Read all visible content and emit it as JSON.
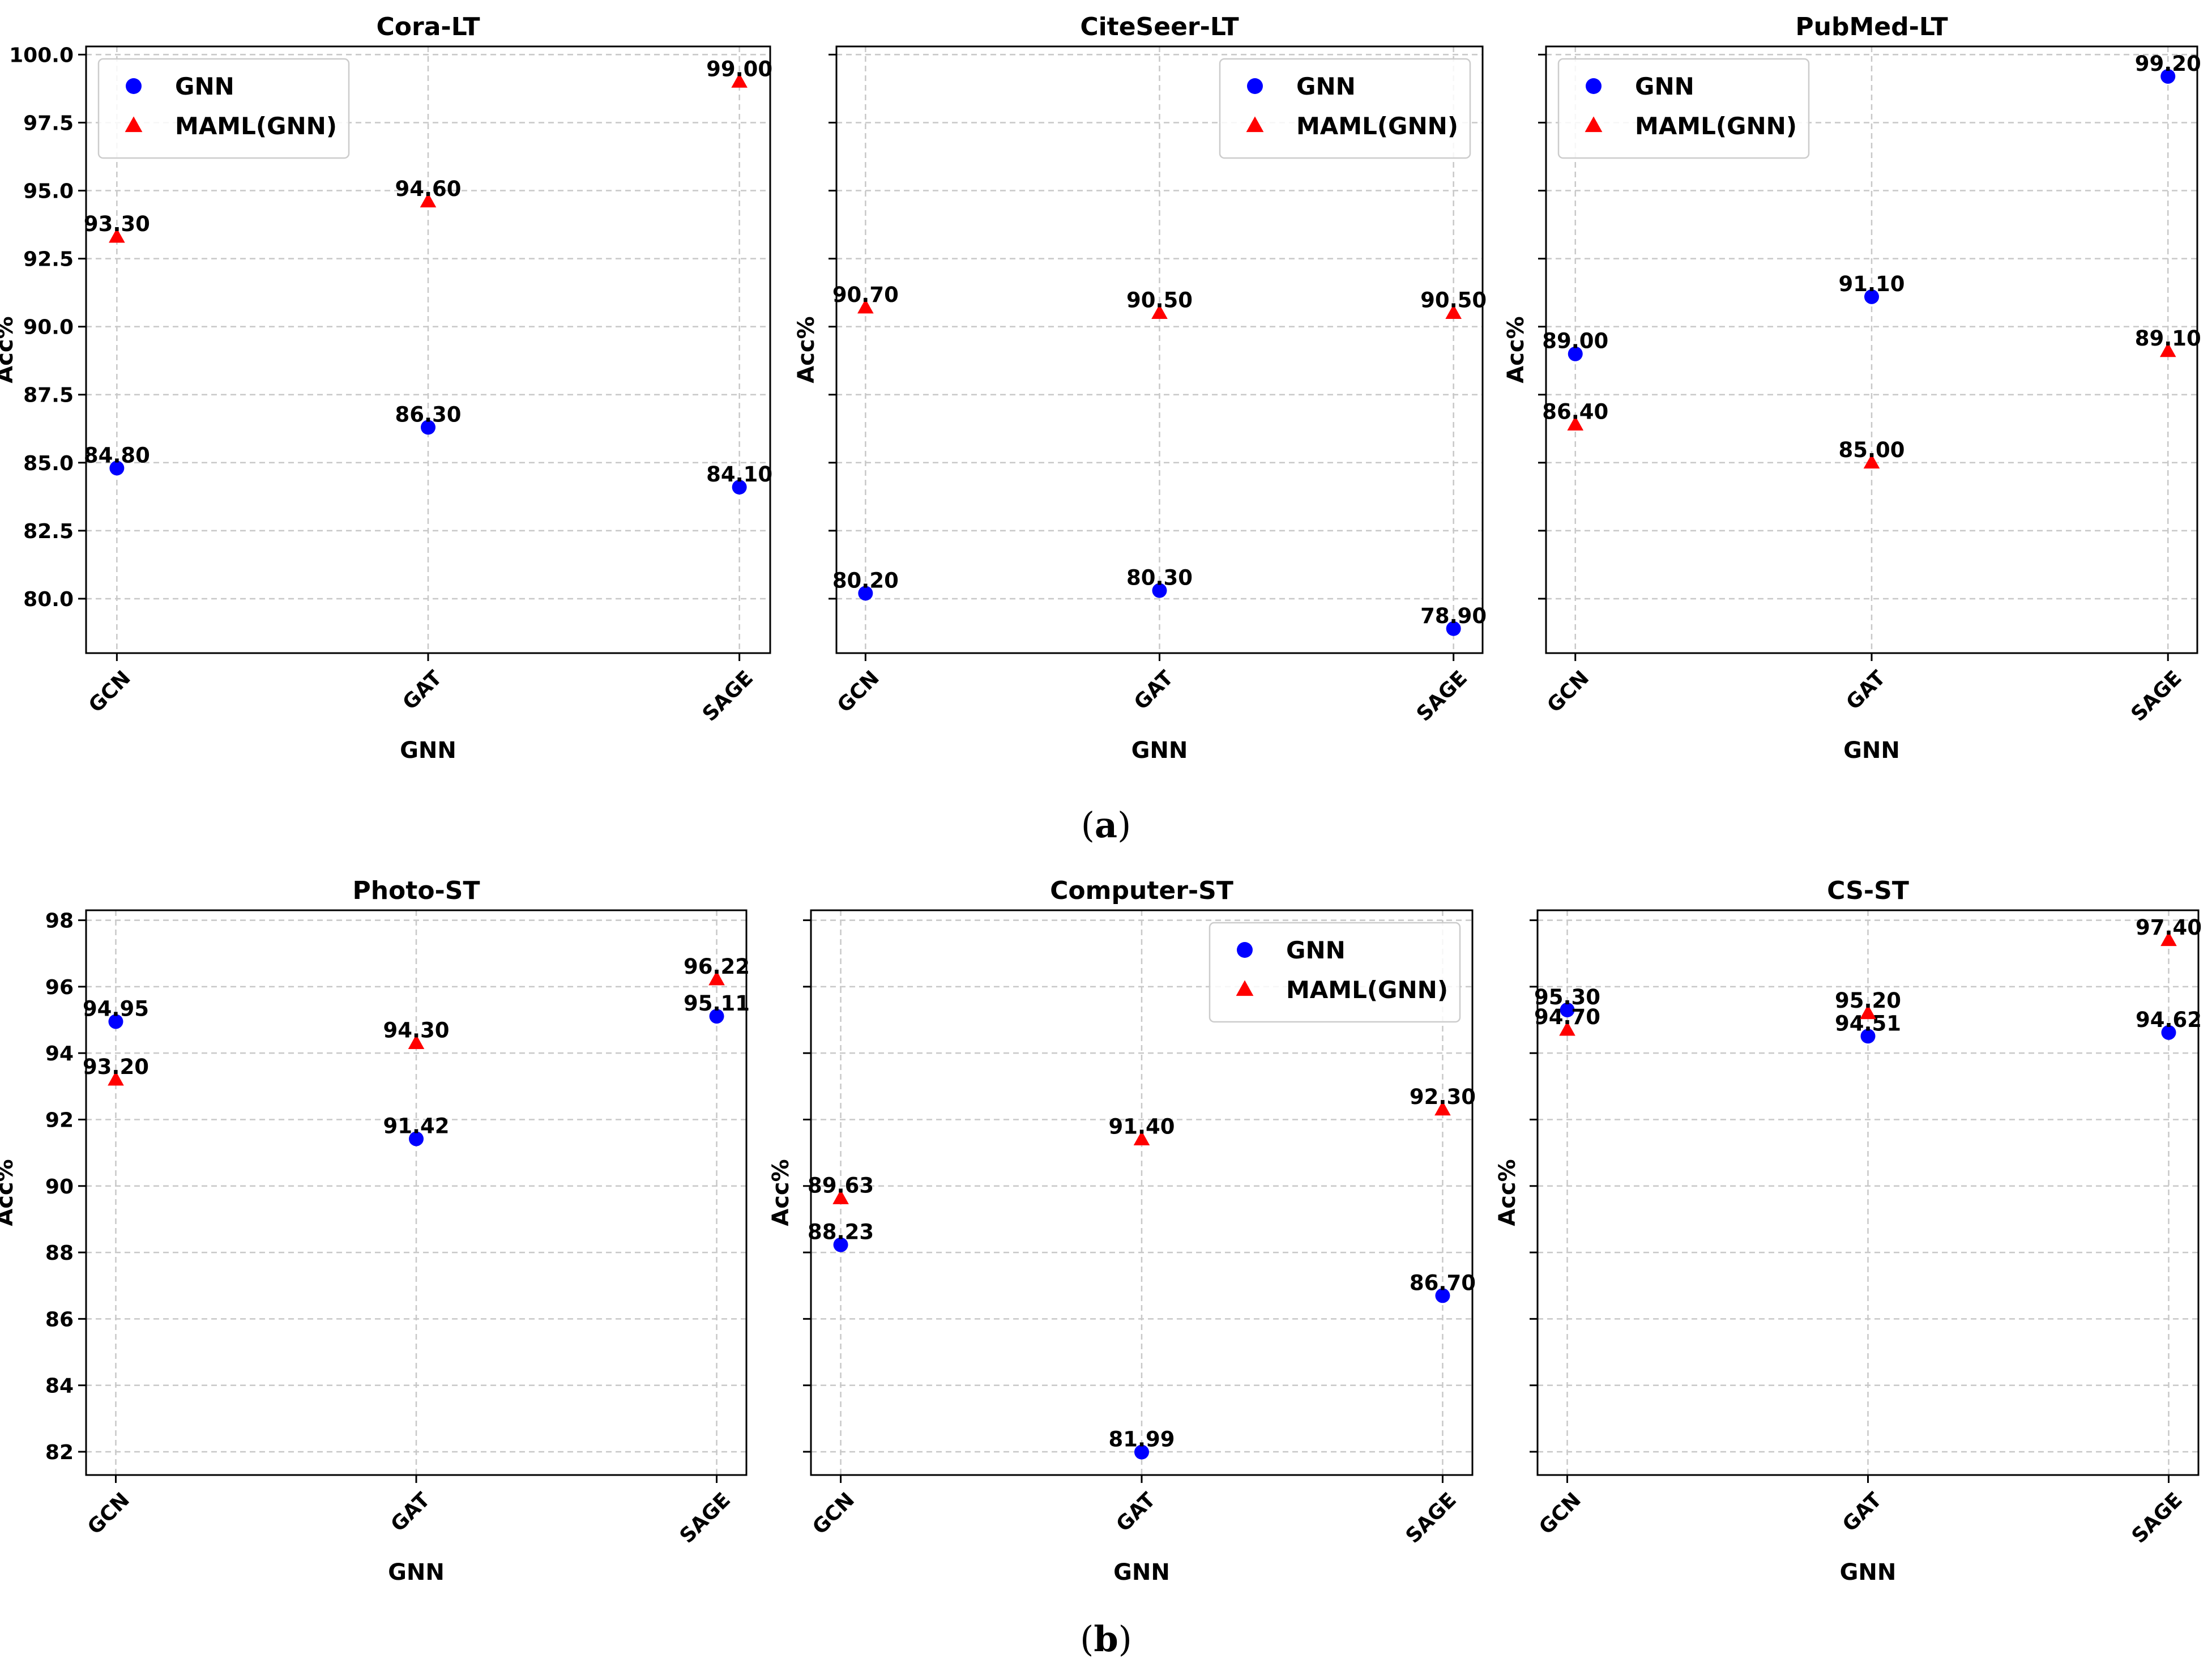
{
  "figure": {
    "captions": [
      {
        "open": "(",
        "letter": "a",
        "close": ")"
      },
      {
        "open": "(",
        "letter": "b",
        "close": ")"
      }
    ],
    "colors": {
      "gnn": "#0000ff",
      "maml": "#ff0000",
      "grid": "#c8c8c8",
      "axis": "#000000"
    }
  },
  "chart_data": [
    {
      "type": "scatter",
      "title": "Cora-LT",
      "xlabel": "GNN",
      "ylabel": "Acc%",
      "categories": [
        "GCN",
        "GAT",
        "SAGE"
      ],
      "ylim": [
        78.0,
        100.3
      ],
      "yticks": [
        80.0,
        82.5,
        85.0,
        87.5,
        90.0,
        92.5,
        95.0,
        97.5,
        100.0
      ],
      "ytick_labels": [
        "80.0",
        "82.5",
        "85.0",
        "87.5",
        "90.0",
        "92.5",
        "95.0",
        "97.5",
        "100.0"
      ],
      "show_ytick_labels": true,
      "legend": "top-left",
      "grid": true,
      "series": [
        {
          "name": "GNN",
          "marker": "circle",
          "values": [
            84.8,
            86.3,
            84.1
          ],
          "labels": [
            "84.80",
            "86.30",
            "84.10"
          ]
        },
        {
          "name": "MAML(GNN)",
          "marker": "triangle",
          "values": [
            93.3,
            94.6,
            99.0
          ],
          "labels": [
            "93.30",
            "94.60",
            "99.00"
          ]
        }
      ]
    },
    {
      "type": "scatter",
      "title": "CiteSeer-LT",
      "xlabel": "GNN",
      "ylabel": "Acc%",
      "categories": [
        "GCN",
        "GAT",
        "SAGE"
      ],
      "ylim": [
        78.0,
        100.3
      ],
      "yticks": [
        80.0,
        82.5,
        85.0,
        87.5,
        90.0,
        92.5,
        95.0,
        97.5,
        100.0
      ],
      "ytick_labels": [],
      "show_ytick_labels": false,
      "legend": "top-right",
      "grid": true,
      "series": [
        {
          "name": "GNN",
          "marker": "circle",
          "values": [
            80.2,
            80.3,
            78.9
          ],
          "labels": [
            "80.20",
            "80.30",
            "78.90"
          ]
        },
        {
          "name": "MAML(GNN)",
          "marker": "triangle",
          "values": [
            90.7,
            90.5,
            90.5
          ],
          "labels": [
            "90.70",
            "90.50",
            "90.50"
          ]
        }
      ]
    },
    {
      "type": "scatter",
      "title": "PubMed-LT",
      "xlabel": "GNN",
      "ylabel": "Acc%",
      "categories": [
        "GCN",
        "GAT",
        "SAGE"
      ],
      "ylim": [
        78.0,
        100.3
      ],
      "yticks": [
        80.0,
        82.5,
        85.0,
        87.5,
        90.0,
        92.5,
        95.0,
        97.5,
        100.0
      ],
      "ytick_labels": [],
      "show_ytick_labels": false,
      "legend": "top-left",
      "grid": true,
      "series": [
        {
          "name": "GNN",
          "marker": "circle",
          "values": [
            89.0,
            91.1,
            99.2
          ],
          "labels": [
            "89.00",
            "91.10",
            "99.20"
          ]
        },
        {
          "name": "MAML(GNN)",
          "marker": "triangle",
          "values": [
            86.4,
            85.0,
            89.1
          ],
          "labels": [
            "86.40",
            "85.00",
            "89.10"
          ]
        }
      ]
    },
    {
      "type": "scatter",
      "title": "Photo-ST",
      "xlabel": "GNN",
      "ylabel": "Acc%",
      "categories": [
        "GCN",
        "GAT",
        "SAGE"
      ],
      "ylim": [
        81.3,
        98.3
      ],
      "yticks": [
        82,
        84,
        86,
        88,
        90,
        92,
        94,
        96,
        98
      ],
      "ytick_labels": [
        "82",
        "84",
        "86",
        "88",
        "90",
        "92",
        "94",
        "96",
        "98"
      ],
      "show_ytick_labels": true,
      "legend": "none",
      "grid": true,
      "series": [
        {
          "name": "GNN",
          "marker": "circle",
          "values": [
            94.95,
            91.42,
            95.11
          ],
          "labels": [
            "94.95",
            "91.42",
            "95.11"
          ]
        },
        {
          "name": "MAML(GNN)",
          "marker": "triangle",
          "values": [
            93.2,
            94.3,
            96.22
          ],
          "labels": [
            "93.20",
            "94.30",
            "96.22"
          ]
        }
      ]
    },
    {
      "type": "scatter",
      "title": "Computer-ST",
      "xlabel": "GNN",
      "ylabel": "Acc%",
      "categories": [
        "GCN",
        "GAT",
        "SAGE"
      ],
      "ylim": [
        81.3,
        98.3
      ],
      "yticks": [
        82,
        84,
        86,
        88,
        90,
        92,
        94,
        96,
        98
      ],
      "ytick_labels": [],
      "show_ytick_labels": false,
      "legend": "top-right",
      "grid": true,
      "series": [
        {
          "name": "GNN",
          "marker": "circle",
          "values": [
            88.23,
            81.99,
            86.7
          ],
          "labels": [
            "88.23",
            "81.99",
            "86.70"
          ]
        },
        {
          "name": "MAML(GNN)",
          "marker": "triangle",
          "values": [
            89.63,
            91.4,
            92.3
          ],
          "labels": [
            "89.63",
            "91.40",
            "92.30"
          ]
        }
      ]
    },
    {
      "type": "scatter",
      "title": "CS-ST",
      "xlabel": "GNN",
      "ylabel": "Acc%",
      "categories": [
        "GCN",
        "GAT",
        "SAGE"
      ],
      "ylim": [
        81.3,
        98.3
      ],
      "yticks": [
        82,
        84,
        86,
        88,
        90,
        92,
        94,
        96,
        98
      ],
      "ytick_labels": [],
      "show_ytick_labels": false,
      "legend": "none",
      "grid": true,
      "series": [
        {
          "name": "GNN",
          "marker": "circle",
          "values": [
            95.3,
            94.51,
            94.62
          ],
          "labels": [
            "95.30",
            "94.51",
            "94.62"
          ]
        },
        {
          "name": "MAML(GNN)",
          "marker": "triangle",
          "values": [
            94.7,
            95.2,
            97.4
          ],
          "labels": [
            "94.70",
            "95.20",
            "97.40"
          ]
        }
      ]
    }
  ]
}
